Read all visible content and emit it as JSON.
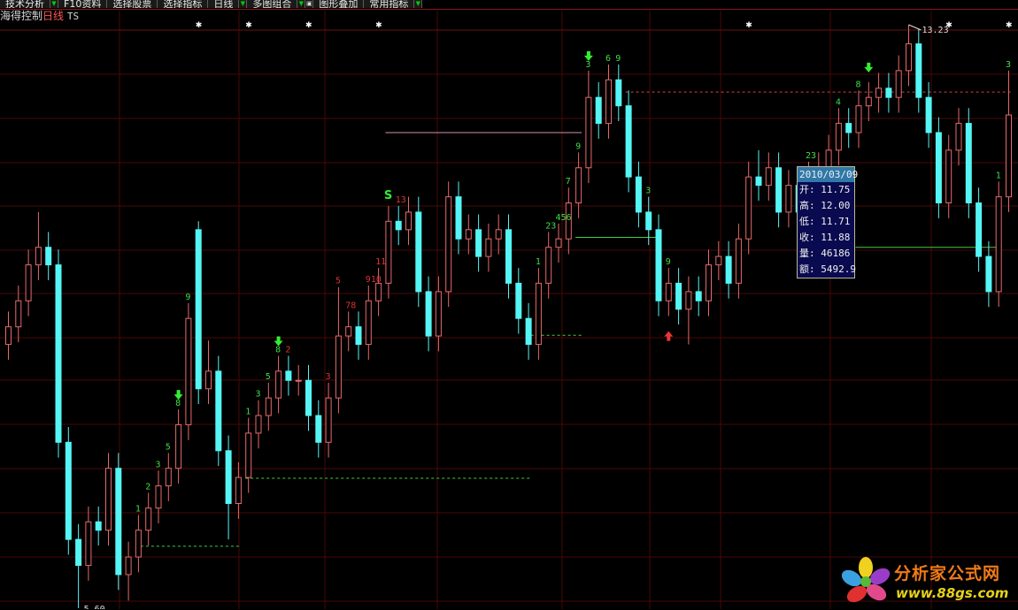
{
  "toolbar": {
    "items": [
      {
        "label": "技术分析",
        "dropdown": true
      },
      {
        "label": "F10资料",
        "dropdown": false
      },
      {
        "label": "选择股票",
        "dropdown": false
      },
      {
        "label": "选择指标",
        "dropdown": false
      },
      {
        "label": "日线",
        "dropdown": true
      },
      {
        "label": "多图组合",
        "dropdown": true
      },
      {
        "label": "图形叠加",
        "dropdown": false,
        "icon": true
      },
      {
        "label": "常用指标",
        "dropdown": true
      }
    ]
  },
  "title": {
    "stock_name": "海得控制",
    "period": "日线",
    "indicator": "TS"
  },
  "tooltip": {
    "date": "2010/03/09",
    "rows": [
      {
        "label": "开",
        "value": "11.75"
      },
      {
        "label": "高",
        "value": "12.00"
      },
      {
        "label": "低",
        "value": "11.71"
      },
      {
        "label": "收",
        "value": "11.88"
      },
      {
        "label": "量",
        "value": "46186"
      },
      {
        "label": "额",
        "value": "5492.9"
      }
    ]
  },
  "logo": {
    "name": "分析家公式网",
    "url": "www.88gs.com"
  },
  "colors": {
    "up": "#e86a6a",
    "down": "#55f5f5",
    "grid": "#4a0808",
    "count_green": "#44dd44",
    "count_red": "#dd3333",
    "resistance": "#cc4444",
    "pink_line": "#d890b0"
  },
  "chart_data": {
    "type": "candlestick",
    "ylim": [
      5.6,
      13.23
    ],
    "grid": true,
    "max_label": "13.23",
    "min_label": "5.60",
    "max_index": 90,
    "min_index": 7,
    "open": [
      9.05,
      9.28,
      9.62,
      10.09,
      10.32,
      10.09,
      7.77,
      6.5,
      6.16,
      6.73,
      6.62,
      7.43,
      6.04,
      6.27,
      6.62,
      6.91,
      7.2,
      7.43,
      8.0,
      10.55,
      8.47,
      8.7,
      7.66,
      6.97,
      7.31,
      7.89,
      8.12,
      8.35,
      8.7,
      8.58,
      8.58,
      8.12,
      7.77,
      8.35,
      9.16,
      9.28,
      9.05,
      9.62,
      9.85,
      10.66,
      10.55,
      10.78,
      9.74,
      9.16,
      9.74,
      10.98,
      10.43,
      10.55,
      10.2,
      10.43,
      10.55,
      9.85,
      9.39,
      9.05,
      9.85,
      10.32,
      10.43,
      10.9,
      11.36,
      12.28,
      11.94,
      12.51,
      12.17,
      11.24,
      10.78,
      10.55,
      9.62,
      9.85,
      9.51,
      9.74,
      9.62,
      10.09,
      10.2,
      9.85,
      10.43,
      11.24,
      11.13,
      11.36,
      10.78,
      11.13,
      10.78,
      11.24,
      11.36,
      11.59,
      11.94,
      11.82,
      12.17,
      12.28,
      12.4,
      12.28,
      12.63,
      12.98,
      12.28,
      11.82,
      10.9,
      11.59,
      11.94,
      10.9,
      10.2,
      9.74,
      10.98
    ],
    "high": [
      9.48,
      9.82,
      10.29,
      10.78,
      10.52,
      10.29,
      7.97,
      6.7,
      6.93,
      6.93,
      7.63,
      7.63,
      6.47,
      6.82,
      7.11,
      7.4,
      7.63,
      8.2,
      9.59,
      10.66,
      9.1,
      8.9,
      7.86,
      7.51,
      8.09,
      8.32,
      8.55,
      8.9,
      8.9,
      8.78,
      8.78,
      8.32,
      8.55,
      9.8,
      9.48,
      9.48,
      9.82,
      10.05,
      10.86,
      10.86,
      10.98,
      10.98,
      9.94,
      9.94,
      11.18,
      11.18,
      10.75,
      10.75,
      10.63,
      10.75,
      10.75,
      10.05,
      9.59,
      10.05,
      10.52,
      10.63,
      11.1,
      11.56,
      12.63,
      12.48,
      12.71,
      12.71,
      12.37,
      11.44,
      10.98,
      10.75,
      10.05,
      10.05,
      9.94,
      9.94,
      10.29,
      10.4,
      10.4,
      10.63,
      11.44,
      11.59,
      11.56,
      11.56,
      11.33,
      11.33,
      11.44,
      11.56,
      11.79,
      12.14,
      12.14,
      12.37,
      12.48,
      12.6,
      12.6,
      12.83,
      13.23,
      13.18,
      12.48,
      12.02,
      11.79,
      12.14,
      12.14,
      11.1,
      10.4,
      11.18,
      12.63
    ],
    "low": [
      8.85,
      9.08,
      9.42,
      9.89,
      9.89,
      7.57,
      6.3,
      5.6,
      5.96,
      6.42,
      6.42,
      5.84,
      5.7,
      6.07,
      6.42,
      6.71,
      7.0,
      7.23,
      7.8,
      8.27,
      8.27,
      7.46,
      6.5,
      6.77,
      7.11,
      7.69,
      7.92,
      8.15,
      8.38,
      8.38,
      7.92,
      7.57,
      7.57,
      8.15,
      8.96,
      8.85,
      8.85,
      9.42,
      9.65,
      10.35,
      10.35,
      9.54,
      8.96,
      8.96,
      9.54,
      10.23,
      10.23,
      10.0,
      10.0,
      10.23,
      9.65,
      9.19,
      8.85,
      8.85,
      9.65,
      10.12,
      10.23,
      10.7,
      11.16,
      11.74,
      11.74,
      11.97,
      11.04,
      10.58,
      10.35,
      9.42,
      9.42,
      9.31,
      9.05,
      9.42,
      9.42,
      9.89,
      9.65,
      9.65,
      10.23,
      10.93,
      10.93,
      10.58,
      10.58,
      10.58,
      10.58,
      11.04,
      11.16,
      11.39,
      11.62,
      11.62,
      11.97,
      12.08,
      12.08,
      12.08,
      12.43,
      12.08,
      11.62,
      10.7,
      10.7,
      11.39,
      10.7,
      10.0,
      9.54,
      9.54,
      10.78
    ],
    "close": [
      9.28,
      9.62,
      10.09,
      10.32,
      10.09,
      7.77,
      6.5,
      6.16,
      6.73,
      6.62,
      7.43,
      6.04,
      6.27,
      6.62,
      6.91,
      7.2,
      7.43,
      8.0,
      9.39,
      8.47,
      8.7,
      7.66,
      6.97,
      7.31,
      7.89,
      8.12,
      8.35,
      8.7,
      8.58,
      8.58,
      8.12,
      7.77,
      8.35,
      9.16,
      9.28,
      9.05,
      9.62,
      9.85,
      10.66,
      10.55,
      10.78,
      9.74,
      9.16,
      9.74,
      10.98,
      10.43,
      10.55,
      10.2,
      10.43,
      10.55,
      9.85,
      9.39,
      9.05,
      9.85,
      10.32,
      10.43,
      10.9,
      11.36,
      12.28,
      11.94,
      12.51,
      12.17,
      11.24,
      10.78,
      10.55,
      9.62,
      9.85,
      9.51,
      9.74,
      9.62,
      10.09,
      10.2,
      9.85,
      10.43,
      11.24,
      11.13,
      11.36,
      10.78,
      11.13,
      10.78,
      11.24,
      11.36,
      11.59,
      11.94,
      11.82,
      12.17,
      12.28,
      12.4,
      12.28,
      12.63,
      12.98,
      12.28,
      11.82,
      10.9,
      11.59,
      11.94,
      10.9,
      10.2,
      9.74,
      10.98,
      12.05
    ],
    "levels": [
      {
        "price": 11.82,
        "from": 38,
        "to": 57,
        "style": "solid",
        "color": "#d890b0"
      },
      {
        "price": 10.45,
        "from": 57,
        "to": 65,
        "style": "solid",
        "color": "#44cc44"
      },
      {
        "price": 7.3,
        "from": 24,
        "to": 52,
        "style": "dashed",
        "color": "#44cc44"
      },
      {
        "price": 6.41,
        "from": 13,
        "to": 23,
        "style": "dashed",
        "color": "#44cc44"
      },
      {
        "price": 9.17,
        "from": 52,
        "to": 57,
        "style": "dashed",
        "color": "#44cc44"
      },
      {
        "price": 12.35,
        "from": 62,
        "to": 100,
        "style": "dashed",
        "color": "#cc4444"
      },
      {
        "price": 10.32,
        "from": 85,
        "to": 99,
        "style": "solid",
        "color": "#44cc44"
      }
    ],
    "counts": [
      {
        "i": 13,
        "text": "1",
        "color": "green"
      },
      {
        "i": 14,
        "text": "2",
        "color": "green"
      },
      {
        "i": 15,
        "text": "3",
        "color": "green"
      },
      {
        "i": 16,
        "text": "5",
        "color": "green"
      },
      {
        "i": 17,
        "text": "8",
        "color": "green"
      },
      {
        "i": 18,
        "text": "9",
        "color": "green"
      },
      {
        "i": 24,
        "text": "1",
        "color": "green"
      },
      {
        "i": 25,
        "text": "3",
        "color": "green"
      },
      {
        "i": 26,
        "text": "5",
        "color": "green"
      },
      {
        "i": 27,
        "text": "8",
        "color": "green"
      },
      {
        "i": 28,
        "text": "2",
        "color": "red"
      },
      {
        "i": 32,
        "text": "3",
        "color": "red"
      },
      {
        "i": 33,
        "text": "5",
        "color": "red"
      },
      {
        "i": 34,
        "text": "78",
        "color": "red"
      },
      {
        "i": 36,
        "text": "910",
        "color": "red"
      },
      {
        "i": 37,
        "text": "11",
        "color": "red"
      },
      {
        "i": 39,
        "text": "13",
        "color": "red"
      },
      {
        "i": 53,
        "text": "1",
        "color": "green"
      },
      {
        "i": 54,
        "text": "23",
        "color": "green"
      },
      {
        "i": 55,
        "text": "456",
        "color": "green"
      },
      {
        "i": 56,
        "text": "7",
        "color": "green"
      },
      {
        "i": 57,
        "text": "9",
        "color": "green"
      },
      {
        "i": 58,
        "text": "3",
        "color": "green"
      },
      {
        "i": 60,
        "text": "6",
        "color": "green"
      },
      {
        "i": 61,
        "text": "9",
        "color": "green"
      },
      {
        "i": 64,
        "text": "3",
        "color": "green"
      },
      {
        "i": 66,
        "text": "9",
        "color": "green"
      },
      {
        "i": 80,
        "text": "23",
        "color": "green"
      },
      {
        "i": 83,
        "text": "4",
        "color": "green"
      },
      {
        "i": 85,
        "text": "8",
        "color": "green"
      },
      {
        "i": 99,
        "text": "1",
        "color": "green"
      },
      {
        "i": 100,
        "text": "3",
        "color": "green"
      }
    ],
    "signals": [
      {
        "i": 17,
        "type": "sell-arrow"
      },
      {
        "i": 27,
        "type": "sell-arrow"
      },
      {
        "i": 58,
        "type": "sell-arrow"
      },
      {
        "i": 86,
        "type": "sell-arrow"
      },
      {
        "i": 66,
        "type": "buy-arrow"
      },
      {
        "i": 38,
        "type": "s-mark"
      }
    ],
    "top_markers": [
      19,
      24,
      30,
      37,
      74,
      94,
      100
    ]
  }
}
